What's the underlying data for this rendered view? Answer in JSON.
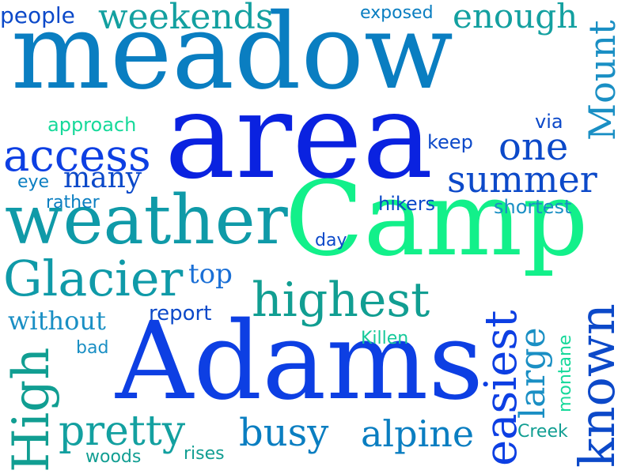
{
  "words": {
    "meadow": "meadow",
    "area": "area",
    "camp": "Camp",
    "adams": "Adams",
    "weather": "weather",
    "access": "access",
    "glacier": "Glacier",
    "highest": "highest",
    "one": "one",
    "summer": "summer",
    "weekends": "weekends",
    "enough": "enough",
    "pretty": "pretty",
    "busy": "busy",
    "alpine": "alpine",
    "many": "many",
    "top": "top",
    "without": "without",
    "people": "people",
    "exposed": "exposed",
    "approach": "approach",
    "via": "via",
    "keep": "keep",
    "eye": "eye",
    "rather": "rather",
    "hikers": "hikers",
    "shortest": "shortest",
    "day": "day",
    "report": "report",
    "killen": "Killen",
    "bad": "bad",
    "creek": "Creek",
    "woods": "woods",
    "rises": "rises",
    "mount": "Mount",
    "high": "High",
    "easiest": "easiest",
    "large": "large",
    "known": "known",
    "montane": "montane"
  },
  "colors": {
    "background": "#ffffff",
    "blue": "#0a22e0",
    "mid_blue": "#0a7ec1",
    "teal": "#0f9aa8",
    "mint": "#12f08a"
  }
}
